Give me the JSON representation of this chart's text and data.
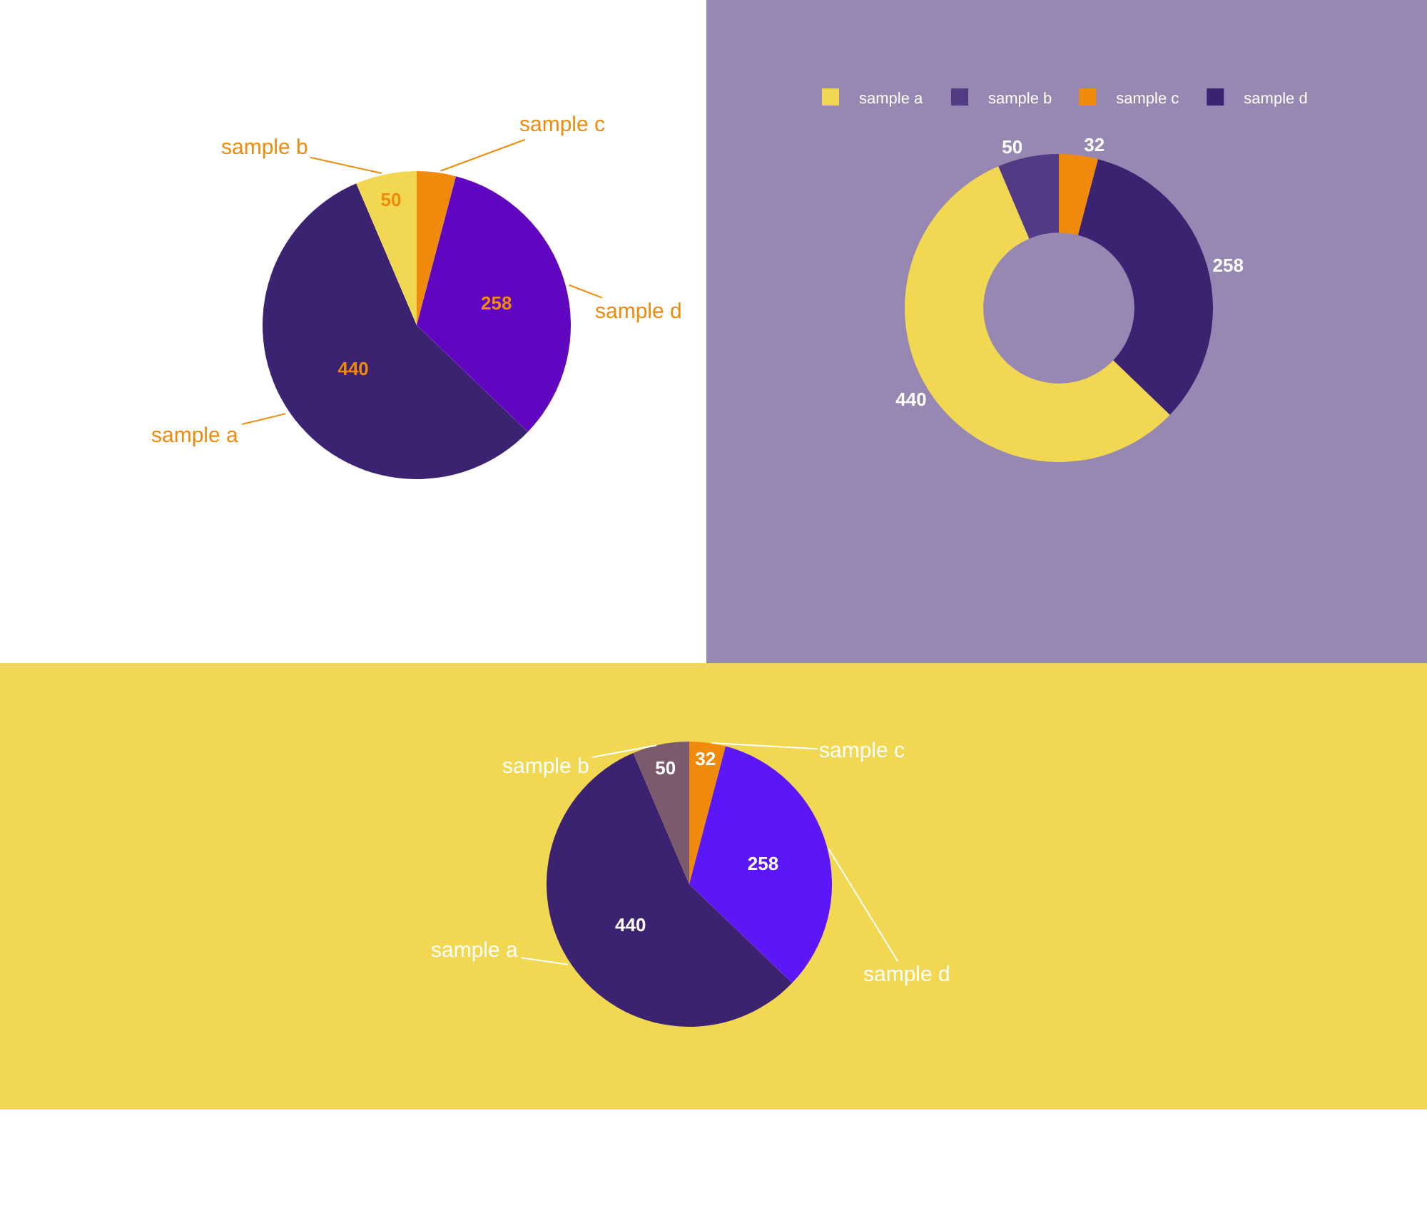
{
  "chart_data": [
    {
      "type": "pie",
      "categories": [
        "sample a",
        "sample b",
        "sample c",
        "sample d"
      ],
      "values": [
        440,
        50,
        32,
        258
      ],
      "colors": [
        "#3c2372",
        "#f2d852",
        "#f08a0a",
        "#6005c0"
      ],
      "value_labels": [
        "440",
        "50",
        null,
        "258"
      ]
    },
    {
      "type": "donut",
      "categories": [
        "sample a",
        "sample b",
        "sample c",
        "sample d"
      ],
      "values": [
        440,
        50,
        32,
        258
      ],
      "colors": [
        "#f2d852",
        "#523a84",
        "#f08a0a",
        "#3c2372"
      ],
      "data_labels": true,
      "legend": "top"
    },
    {
      "type": "pie",
      "categories": [
        "sample a",
        "sample b",
        "sample c",
        "sample d"
      ],
      "values": [
        440,
        50,
        32,
        258
      ],
      "colors": [
        "#3c2372",
        "#7c5a6e",
        "#f08a0a",
        "#5b17f5"
      ],
      "data_labels": true
    }
  ]
}
